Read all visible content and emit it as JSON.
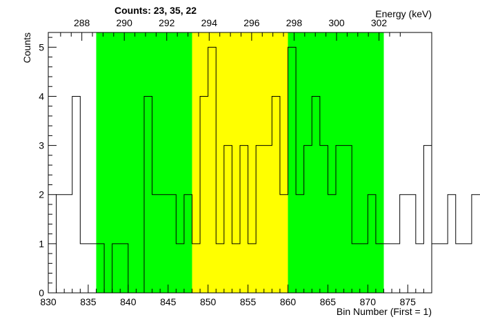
{
  "chart_data": {
    "type": "histogram",
    "title": "Counts:   23,   35,   22",
    "xlabel": "Bin Number (First = 1)",
    "ylabel": "Counts",
    "top_axis_label": "Energy (keV)",
    "xlim": [
      830,
      878
    ],
    "ylim": [
      0,
      5.3
    ],
    "x_ticks": [
      830,
      835,
      840,
      845,
      850,
      855,
      860,
      865,
      870,
      875
    ],
    "y_ticks": [
      0,
      1,
      2,
      3,
      4,
      5
    ],
    "top_ticks": [
      288,
      290,
      292,
      294,
      296,
      298,
      300,
      302
    ],
    "top_axis_bin_at": {
      "energy": [
        288,
        302
      ],
      "bin": [
        834.2,
        871.4
      ]
    },
    "bin_width": 1,
    "bins": {
      "x_start": 830,
      "values": [
        0,
        2,
        2,
        4,
        1,
        1,
        1,
        0,
        1,
        1,
        0,
        0,
        4,
        2,
        2,
        2,
        1,
        2,
        1,
        4,
        5,
        1,
        3,
        1,
        3,
        1,
        3,
        3,
        4,
        2,
        5,
        2,
        3,
        4,
        3,
        2,
        3,
        3,
        1,
        1,
        2,
        1,
        1,
        1,
        2,
        2,
        1,
        3,
        1,
        1,
        2,
        1,
        1,
        2,
        2,
        1
      ]
    },
    "regions": [
      {
        "x0": 836,
        "x1": 848,
        "color": "#00ff00"
      },
      {
        "x0": 848,
        "x1": 860,
        "color": "#ffff00"
      },
      {
        "x0": 860,
        "x1": 872,
        "color": "#00ff00"
      }
    ],
    "grid": false,
    "legend": "none",
    "line_color": "#000000"
  }
}
